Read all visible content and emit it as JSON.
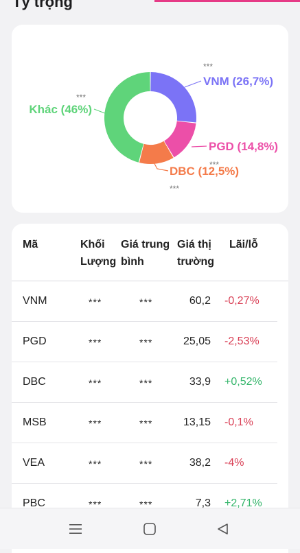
{
  "header": {
    "title": "Tỷ trọng"
  },
  "colors": {
    "accent": "#e63a86",
    "VNM": "#7b73f6",
    "PGD": "#ec4fa8",
    "DBC": "#f47b4a",
    "Khac": "#5fd47a",
    "negative": "#d93f55",
    "positive": "#33b56a"
  },
  "chart_data": {
    "type": "pie",
    "donut": true,
    "title": "",
    "slices": [
      {
        "name": "VNM",
        "label": "VNM (26,7%)",
        "value": 26.7,
        "color": "#7b73f6",
        "hidden_value": "***"
      },
      {
        "name": "PGD",
        "label": "PGD (14,8%)",
        "value": 14.8,
        "color": "#ec4fa8",
        "hidden_value": "***"
      },
      {
        "name": "DBC",
        "label": "DBC (12,5%)",
        "value": 12.5,
        "color": "#f47b4a",
        "hidden_value": "***"
      },
      {
        "name": "Khác",
        "label": "Khác (46%)",
        "value": 46,
        "color": "#5fd47a",
        "hidden_value": "***"
      }
    ]
  },
  "table": {
    "headers": {
      "code": "Mã",
      "quantity": "Khối Lượng",
      "avg_price": "Giá trung bình",
      "market_price": "Giá thị trường",
      "pnl": "Lãi/lỗ"
    },
    "rows": [
      {
        "code": "VNM",
        "quantity": "***",
        "avg_price": "***",
        "market_price": "60,2",
        "pnl": "-0,27%",
        "pnl_sign": "neg"
      },
      {
        "code": "PGD",
        "quantity": "***",
        "avg_price": "***",
        "market_price": "25,05",
        "pnl": "-2,53%",
        "pnl_sign": "neg"
      },
      {
        "code": "DBC",
        "quantity": "***",
        "avg_price": "***",
        "market_price": "33,9",
        "pnl": "+0,52%",
        "pnl_sign": "pos"
      },
      {
        "code": "MSB",
        "quantity": "***",
        "avg_price": "***",
        "market_price": "13,15",
        "pnl": "-0,1%",
        "pnl_sign": "neg"
      },
      {
        "code": "VEA",
        "quantity": "***",
        "avg_price": "***",
        "market_price": "38,2",
        "pnl": "-4%",
        "pnl_sign": "neg"
      },
      {
        "code": "PBC",
        "quantity": "***",
        "avg_price": "***",
        "market_price": "7,3",
        "pnl": "+2,71%",
        "pnl_sign": "pos"
      }
    ]
  },
  "nav": {
    "menu_icon": "menu-icon",
    "home_icon": "home-square-icon",
    "back_icon": "back-triangle-icon"
  }
}
